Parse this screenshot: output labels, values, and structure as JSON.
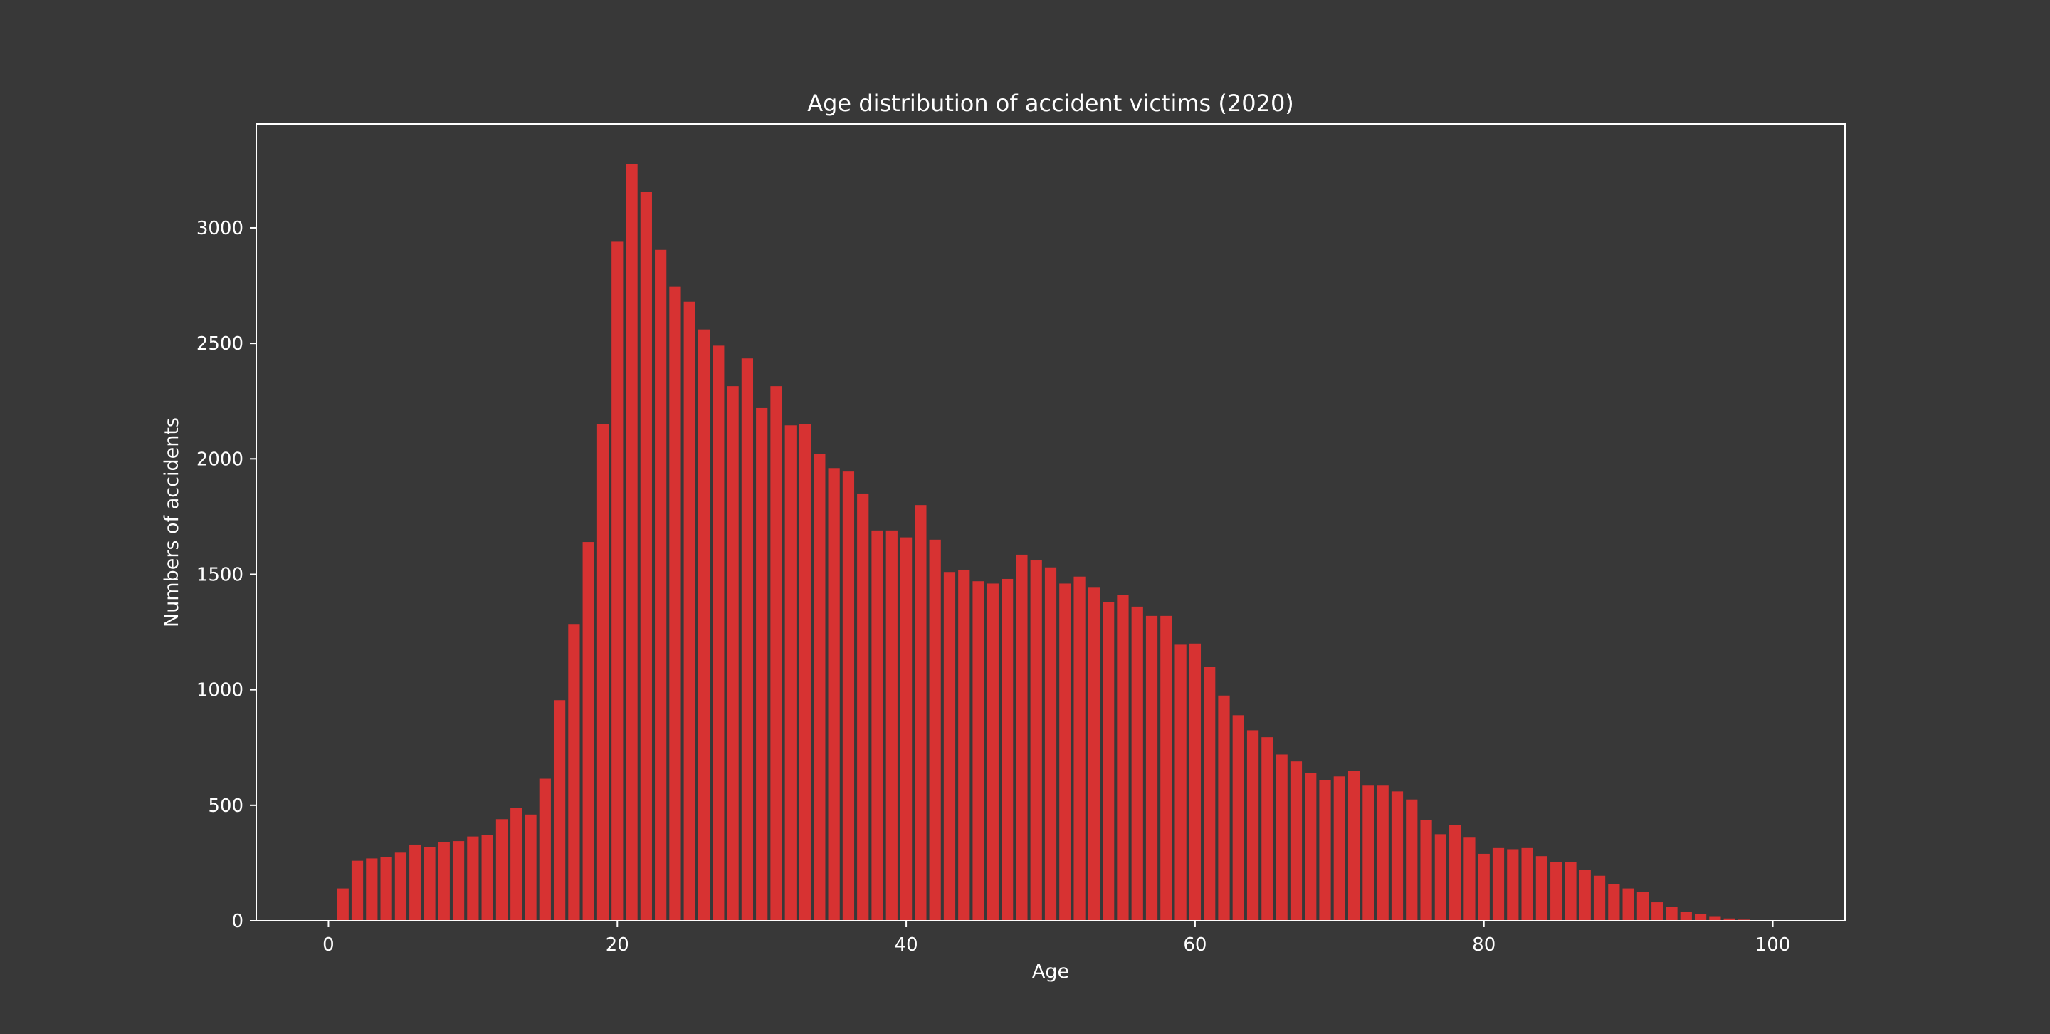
{
  "chart_data": {
    "type": "bar",
    "title": "Age distribution of accident victims (2020)",
    "xlabel": "Age",
    "ylabel": "Numbers of accidents",
    "xlim": [
      -5,
      105
    ],
    "ylim": [
      0,
      3450
    ],
    "xticks": [
      0,
      20,
      40,
      60,
      80,
      100
    ],
    "yticks": [
      0,
      500,
      1000,
      1500,
      2000,
      2500,
      3000
    ],
    "grid": false,
    "legend": "none",
    "colors": {
      "background": "#383838",
      "bar": "#d73232",
      "axes": "#ffffff",
      "text": "#ffffff"
    },
    "x": [
      0,
      1,
      2,
      3,
      4,
      5,
      6,
      7,
      8,
      9,
      10,
      11,
      12,
      13,
      14,
      15,
      16,
      17,
      18,
      19,
      20,
      21,
      22,
      23,
      24,
      25,
      26,
      27,
      28,
      29,
      30,
      31,
      32,
      33,
      34,
      35,
      36,
      37,
      38,
      39,
      40,
      41,
      42,
      43,
      44,
      45,
      46,
      47,
      48,
      49,
      50,
      51,
      52,
      53,
      54,
      55,
      56,
      57,
      58,
      59,
      60,
      61,
      62,
      63,
      64,
      65,
      66,
      67,
      68,
      69,
      70,
      71,
      72,
      73,
      74,
      75,
      76,
      77,
      78,
      79,
      80,
      81,
      82,
      83,
      84,
      85,
      86,
      87,
      88,
      89,
      90,
      91,
      92,
      93,
      94,
      95,
      96,
      97,
      98,
      99,
      100
    ],
    "values": [
      0,
      140,
      260,
      270,
      275,
      295,
      330,
      320,
      340,
      345,
      365,
      370,
      440,
      490,
      460,
      615,
      955,
      1285,
      1640,
      2150,
      2940,
      3275,
      3155,
      2905,
      2745,
      2680,
      2560,
      2490,
      2315,
      2435,
      2220,
      2315,
      2145,
      2150,
      2020,
      1960,
      1945,
      1850,
      1690,
      1690,
      1660,
      1800,
      1650,
      1510,
      1520,
      1470,
      1460,
      1480,
      1585,
      1560,
      1530,
      1460,
      1490,
      1445,
      1380,
      1410,
      1360,
      1320,
      1320,
      1195,
      1200,
      1100,
      975,
      890,
      825,
      795,
      720,
      690,
      640,
      610,
      625,
      650,
      585,
      585,
      560,
      525,
      435,
      375,
      415,
      360,
      290,
      315,
      310,
      315,
      280,
      255,
      255,
      220,
      195,
      160,
      140,
      125,
      80,
      60,
      40,
      30,
      20,
      10,
      5,
      0,
      0
    ]
  }
}
